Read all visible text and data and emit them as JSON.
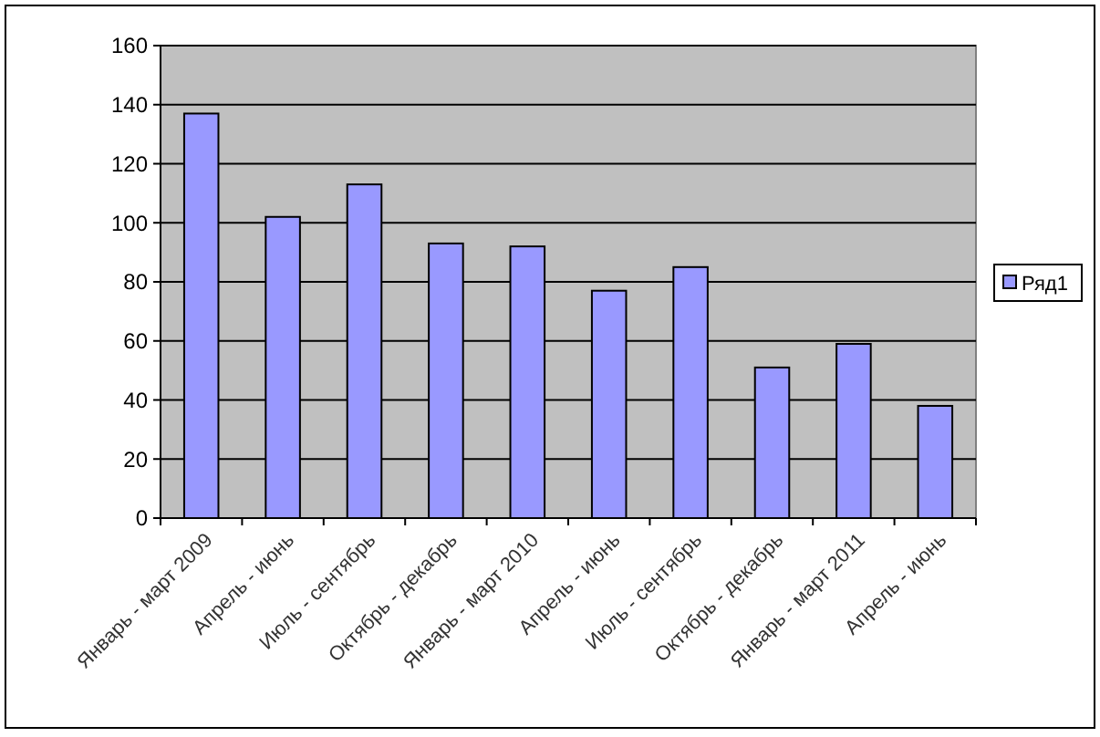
{
  "chart_data": {
    "type": "bar",
    "categories": [
      "Январь - март 2009",
      "Апрель - июнь",
      "Июль - сентябрь",
      "Октябрь - декабрь",
      "Январь - март 2010",
      "Апрель - июнь",
      "Июль - сентябрь",
      "Октябрь - декабрь",
      "Январь - март 2011",
      "Апрель - июнь"
    ],
    "series": [
      {
        "name": "Ряд1",
        "color": "#9999ff",
        "values": [
          137,
          102,
          113,
          93,
          92,
          77,
          85,
          51,
          59,
          38
        ]
      }
    ],
    "ylim": [
      0,
      160
    ],
    "yticks": [
      0,
      20,
      40,
      60,
      80,
      100,
      120,
      140,
      160
    ],
    "grid": "y",
    "legend": "right"
  }
}
